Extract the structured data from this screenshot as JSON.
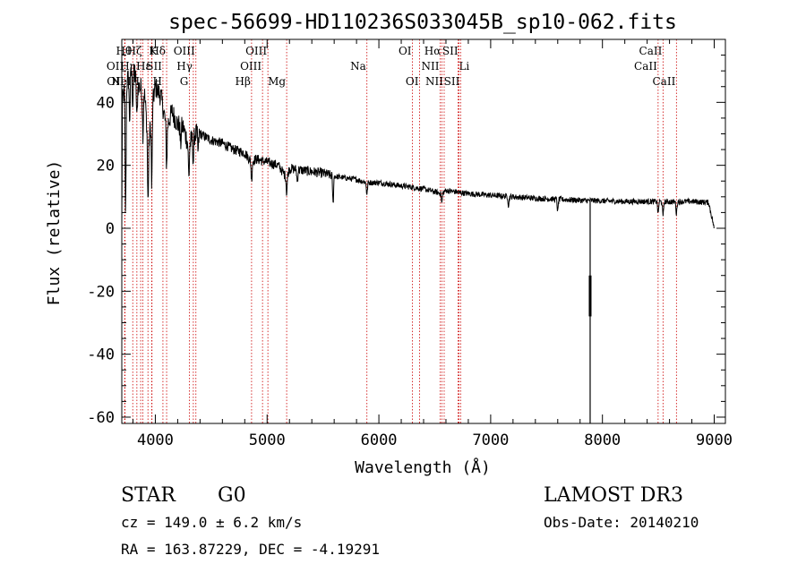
{
  "chart_data": {
    "type": "line",
    "title": "spec-56699-HD110236S033045B_sp10-062.fits",
    "xlabel": "Wavelength (Å)",
    "ylabel": "Flux (relative)",
    "xlim": [
      3700,
      9100
    ],
    "ylim": [
      -62,
      60
    ],
    "x_ticks": [
      4000,
      5000,
      6000,
      7000,
      8000,
      9000
    ],
    "y_ticks": [
      -60,
      -40,
      -20,
      0,
      20,
      40
    ],
    "grid": false,
    "spectrum_anchors": [
      [
        3700,
        2
      ],
      [
        3705,
        40
      ],
      [
        3730,
        45
      ],
      [
        3760,
        48
      ],
      [
        3800,
        50
      ],
      [
        3850,
        45
      ],
      [
        3900,
        44
      ],
      [
        3940,
        26
      ],
      [
        3968,
        38
      ],
      [
        4000,
        45
      ],
      [
        4050,
        42
      ],
      [
        4100,
        32
      ],
      [
        4150,
        37
      ],
      [
        4200,
        33
      ],
      [
        4250,
        32
      ],
      [
        4300,
        26
      ],
      [
        4350,
        30
      ],
      [
        4400,
        30
      ],
      [
        4500,
        28
      ],
      [
        4600,
        27
      ],
      [
        4700,
        25
      ],
      [
        4800,
        24
      ],
      [
        4861,
        21
      ],
      [
        4900,
        22
      ],
      [
        5000,
        21
      ],
      [
        5100,
        20
      ],
      [
        5175,
        16
      ],
      [
        5200,
        19
      ],
      [
        5300,
        18.5
      ],
      [
        5400,
        18
      ],
      [
        5500,
        17.5
      ],
      [
        5600,
        16.5
      ],
      [
        5700,
        16
      ],
      [
        5800,
        15.5
      ],
      [
        5893,
        14.5
      ],
      [
        6000,
        14.5
      ],
      [
        6200,
        13.5
      ],
      [
        6400,
        12.5
      ],
      [
        6563,
        11
      ],
      [
        6600,
        12
      ],
      [
        6800,
        11
      ],
      [
        7000,
        10.5
      ],
      [
        7200,
        10
      ],
      [
        7400,
        9.5
      ],
      [
        7600,
        9.2
      ],
      [
        7860,
        8.8
      ],
      [
        7900,
        8.8
      ],
      [
        8000,
        8.7
      ],
      [
        8200,
        8.5
      ],
      [
        8400,
        8.5
      ],
      [
        8600,
        8.4
      ],
      [
        8800,
        8.5
      ],
      [
        8950,
        8.2
      ],
      [
        9000,
        0
      ]
    ],
    "absorption_dips": [
      [
        3734,
        -40
      ],
      [
        3770,
        -14
      ],
      [
        3798,
        -10
      ],
      [
        3835,
        -12
      ],
      [
        3889,
        -14
      ],
      [
        3934,
        -20
      ],
      [
        3968,
        -25
      ],
      [
        4101,
        -12
      ],
      [
        4226,
        -6
      ],
      [
        4300,
        -10
      ],
      [
        4340,
        -8
      ],
      [
        4383,
        -6
      ],
      [
        4861,
        -6
      ],
      [
        5175,
        -5
      ],
      [
        5270,
        -4
      ],
      [
        5590,
        -9
      ],
      [
        5893,
        -4
      ],
      [
        6563,
        -3
      ],
      [
        7160,
        -3
      ],
      [
        7600,
        -4
      ],
      [
        8498,
        -4
      ],
      [
        8542,
        -5
      ],
      [
        8662,
        -4
      ]
    ],
    "artifact_spike": {
      "x": 7890,
      "min": -62,
      "segment": [
        -15,
        -28
      ]
    },
    "lines": [
      {
        "x": 3726,
        "label": "OII",
        "row": 1,
        "side": "L"
      },
      {
        "x": 3729,
        "label": "OII",
        "row": 2,
        "side": "L"
      },
      {
        "x": 3798,
        "label": "Hθ",
        "row": 0,
        "side": "L"
      },
      {
        "x": 3835,
        "label": "Hη",
        "row": 1,
        "side": "L"
      },
      {
        "x": 3869,
        "label": "NeIII",
        "row": 2,
        "side": "L"
      },
      {
        "x": 3889,
        "label": "Hζ",
        "row": 0,
        "side": "L"
      },
      {
        "x": 3934,
        "label": "K",
        "row": 0,
        "side": "R"
      },
      {
        "x": 3968,
        "label": "H",
        "row": 2,
        "side": "R"
      },
      {
        "x": 3970,
        "label": "Hε",
        "row": 1,
        "side": "L"
      },
      {
        "x": 4068,
        "label": "SII",
        "row": 1,
        "side": "L"
      },
      {
        "x": 4101,
        "label": "Hδ",
        "row": 0,
        "side": "L"
      },
      {
        "x": 4304,
        "label": "G",
        "row": 2,
        "side": "L"
      },
      {
        "x": 4340,
        "label": "Hγ",
        "row": 1,
        "side": "L"
      },
      {
        "x": 4363,
        "label": "OIII",
        "row": 0,
        "side": "L"
      },
      {
        "x": 4861,
        "label": "Hβ",
        "row": 2,
        "side": "L"
      },
      {
        "x": 4959,
        "label": "OIII",
        "row": 1,
        "side": "L"
      },
      {
        "x": 5007,
        "label": "OIII",
        "row": 0,
        "side": "L"
      },
      {
        "x": 5175,
        "label": "Mg",
        "row": 2,
        "side": "L"
      },
      {
        "x": 5893,
        "label": "Na",
        "row": 1,
        "side": "L"
      },
      {
        "x": 6300,
        "label": "OI",
        "row": 0,
        "side": "L"
      },
      {
        "x": 6364,
        "label": "OI",
        "row": 2,
        "side": "L"
      },
      {
        "x": 6548,
        "label": "NII",
        "row": 1,
        "side": "L"
      },
      {
        "x": 6563,
        "label": "Hα",
        "row": 0,
        "side": "L"
      },
      {
        "x": 6584,
        "label": "NII",
        "row": 2,
        "side": "L"
      },
      {
        "x": 6708,
        "label": "Li",
        "row": 1,
        "side": "R"
      },
      {
        "x": 6717,
        "label": "SII",
        "row": 0,
        "side": "L"
      },
      {
        "x": 6731,
        "label": "SII",
        "row": 2,
        "side": "L"
      },
      {
        "x": 8498,
        "label": "CaII",
        "row": 1,
        "side": "L"
      },
      {
        "x": 8542,
        "label": "CaII",
        "row": 0,
        "side": "L"
      },
      {
        "x": 8662,
        "label": "CaII",
        "row": 2,
        "side": "L"
      }
    ],
    "line_color": "#cc0000",
    "spectrum_color": "#000000"
  },
  "info": {
    "class_label": "STAR",
    "subclass": "G0",
    "survey": "LAMOST DR3",
    "cz": "cz = 149.0 ± 6.2 km/s",
    "obs_date": "Obs-Date: 20140210",
    "coords": "RA = 163.87229, DEC =  -4.19291"
  }
}
